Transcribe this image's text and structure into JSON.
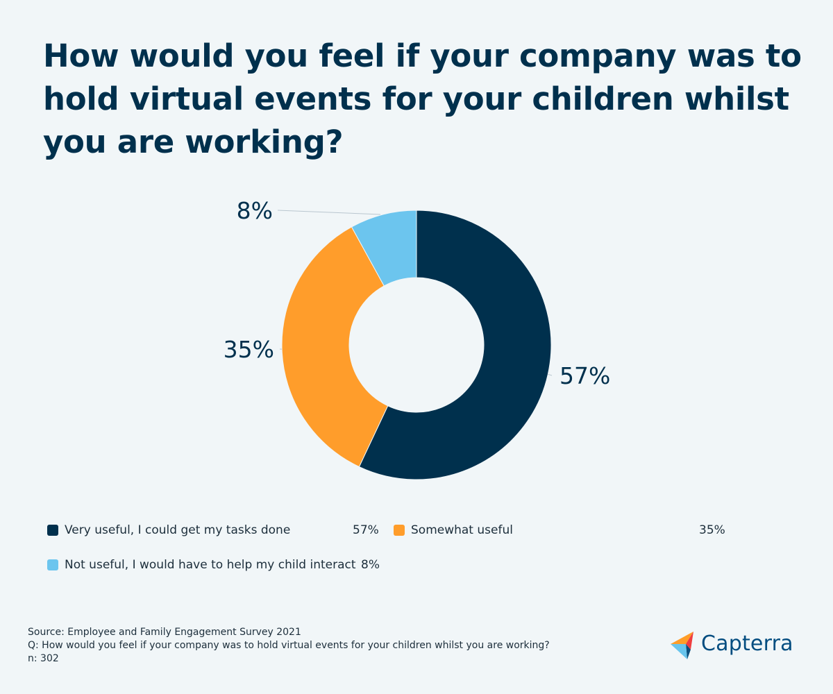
{
  "title": "How would you feel if your company was to hold virtual events for your children whilst you are working?",
  "chart_data": {
    "type": "pie",
    "style": "donut",
    "categories": [
      "Very useful, I could get my tasks done",
      "Somewhat useful",
      "Not useful, I would have to help my child interact"
    ],
    "values": [
      57,
      35,
      8
    ],
    "labels": [
      "57%",
      "35%",
      "8%"
    ],
    "colors": [
      "#00304d",
      "#ff9d2b",
      "#6cc5ee"
    ],
    "legend": "bottom"
  },
  "legend": [
    {
      "label": "Very useful, I could get my tasks done",
      "value": "57%",
      "color": "#00304d"
    },
    {
      "label": "Somewhat useful",
      "value": "35%",
      "color": "#ff9d2b"
    },
    {
      "label": "Not useful, I would have to help my child interact",
      "value": "8%",
      "color": "#6cc5ee"
    }
  ],
  "footer": {
    "source": "Source: Employee and Family Engagement Survey 2021",
    "question": "Q: How would you feel if your company was to hold virtual events for your children whilst you are working?",
    "n": "n: 302"
  },
  "logo": {
    "text": "Capterra"
  },
  "colors": {
    "background": "#f1f6f8",
    "title": "#00304d",
    "text": "#1c2e3b",
    "logo": "#044d80"
  }
}
